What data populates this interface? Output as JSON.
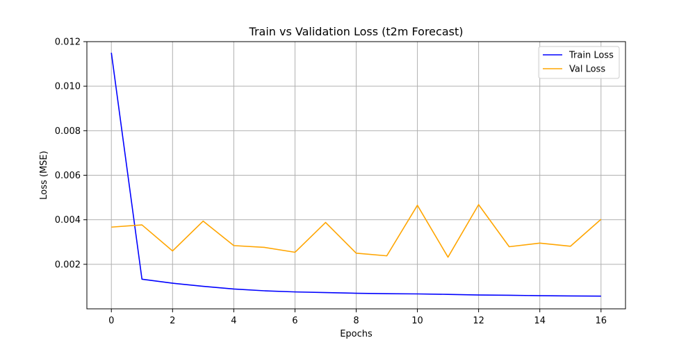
{
  "chart_data": {
    "type": "line",
    "title": "Train vs Validation Loss (t2m Forecast)",
    "xlabel": "Epochs",
    "ylabel": "Loss (MSE)",
    "x": [
      0,
      1,
      2,
      3,
      4,
      5,
      6,
      7,
      8,
      9,
      10,
      11,
      12,
      13,
      14,
      15,
      16
    ],
    "xlim": [
      -0.8,
      16.8
    ],
    "ylim": [
      0.0,
      0.012
    ],
    "xticks": [
      0,
      2,
      4,
      6,
      8,
      10,
      12,
      14,
      16
    ],
    "xtick_labels": [
      "0",
      "2",
      "4",
      "6",
      "8",
      "10",
      "12",
      "14",
      "16"
    ],
    "yticks": [
      0.002,
      0.004,
      0.006,
      0.008,
      0.01,
      0.012
    ],
    "ytick_labels": [
      "0.002",
      "0.004",
      "0.006",
      "0.008",
      "0.010",
      "0.012"
    ],
    "grid": true,
    "legend_position": "top-right",
    "series": [
      {
        "name": "Train Loss",
        "color": "#0000ff",
        "values": [
          0.0115,
          0.00133,
          0.00115,
          0.00101,
          0.00089,
          0.00081,
          0.00076,
          0.00073,
          0.0007,
          0.00068,
          0.00067,
          0.00065,
          0.00062,
          0.00061,
          0.00059,
          0.00058,
          0.00057
        ]
      },
      {
        "name": "Val Loss",
        "color": "#ffa500",
        "values": [
          0.00367,
          0.00377,
          0.0026,
          0.00394,
          0.00284,
          0.00276,
          0.00254,
          0.00388,
          0.0025,
          0.00238,
          0.00465,
          0.00232,
          0.00468,
          0.00279,
          0.00295,
          0.00281,
          0.00402
        ]
      }
    ]
  }
}
